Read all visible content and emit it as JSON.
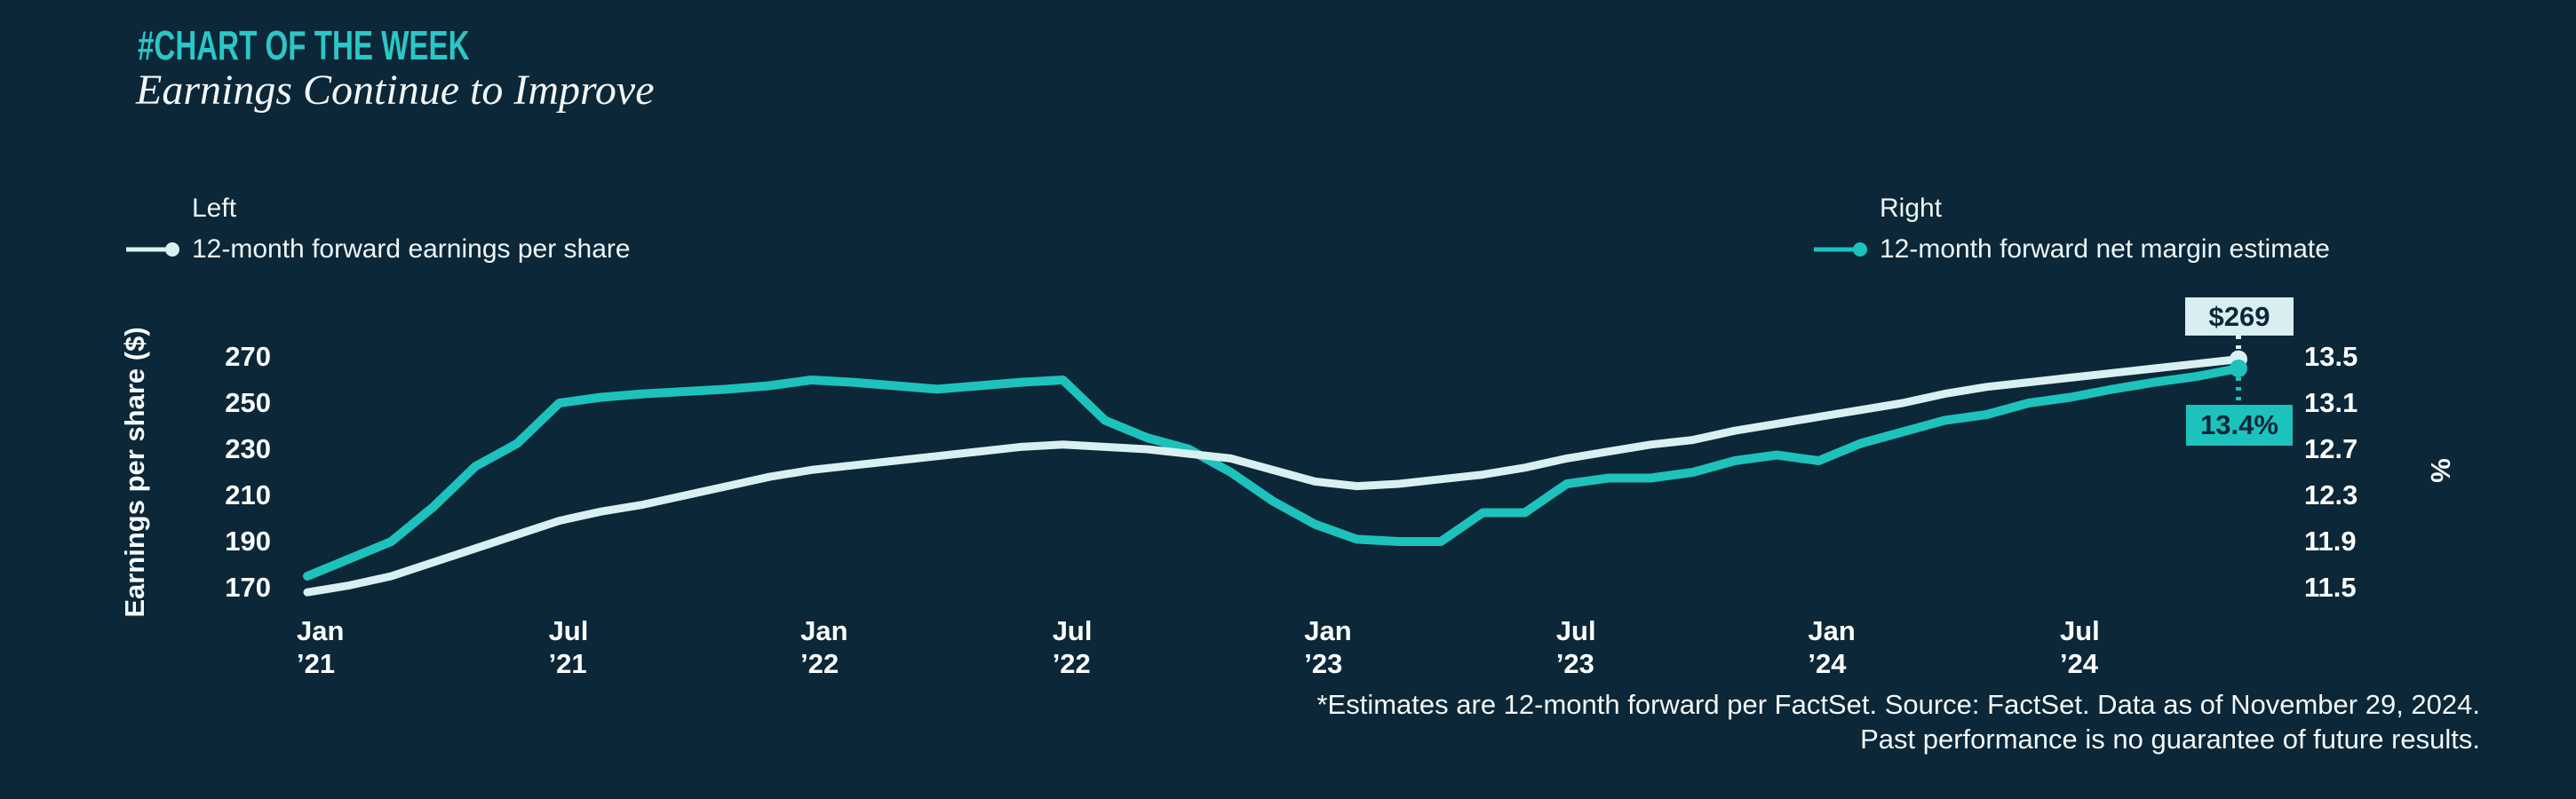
{
  "header": {
    "kicker": "#CHART OF THE WEEK",
    "title": "Earnings Continue to Improve"
  },
  "legend": {
    "left": {
      "axis_label": "Left",
      "series_label": "12-month forward earnings per share"
    },
    "right": {
      "axis_label": "Right",
      "series_label": "12-month forward net margin estimate"
    }
  },
  "colors": {
    "background": "#0c2737",
    "kicker_teal": "#2cc6c6",
    "eps_line": "#d8f0f1",
    "margin_line": "#1dc2bc",
    "text": "#f5fafa",
    "callout_eps_bg": "#d8eef0",
    "callout_margin_bg": "#1dc2bc",
    "callout_text": "#0c2737"
  },
  "chart_data": {
    "type": "line",
    "title": "Earnings Continue to Improve",
    "grid": false,
    "legend_position": "top",
    "x": [
      "2021-01",
      "2021-02",
      "2021-03",
      "2021-04",
      "2021-05",
      "2021-06",
      "2021-07",
      "2021-08",
      "2021-09",
      "2021-10",
      "2021-11",
      "2021-12",
      "2022-01",
      "2022-02",
      "2022-03",
      "2022-04",
      "2022-05",
      "2022-06",
      "2022-07",
      "2022-08",
      "2022-09",
      "2022-10",
      "2022-11",
      "2022-12",
      "2023-01",
      "2023-02",
      "2023-03",
      "2023-04",
      "2023-05",
      "2023-06",
      "2023-07",
      "2023-08",
      "2023-09",
      "2023-10",
      "2023-11",
      "2023-12",
      "2024-01",
      "2024-02",
      "2024-03",
      "2024-04",
      "2024-05",
      "2024-06",
      "2024-07",
      "2024-08",
      "2024-09",
      "2024-10",
      "2024-11"
    ],
    "series": [
      {
        "name": "12-month forward earnings per share",
        "axis": "left",
        "unit": "$",
        "color": "#d8f0f1",
        "values": [
          168,
          171,
          175,
          181,
          187,
          193,
          199,
          203,
          206,
          210,
          214,
          218,
          221,
          223,
          225,
          227,
          229,
          231,
          232,
          231,
          230,
          228,
          226,
          221,
          216,
          214,
          215,
          217,
          219,
          222,
          226,
          229,
          232,
          234,
          238,
          241,
          244,
          247,
          250,
          254,
          257,
          259,
          261,
          263,
          265,
          267,
          269
        ]
      },
      {
        "name": "12-month forward net margin estimate",
        "axis": "right",
        "unit": "%",
        "color": "#1dc2bc",
        "values": [
          11.6,
          11.75,
          11.9,
          12.2,
          12.55,
          12.75,
          13.1,
          13.15,
          13.18,
          13.2,
          13.22,
          13.25,
          13.3,
          13.28,
          13.25,
          13.22,
          13.25,
          13.28,
          13.3,
          12.95,
          12.8,
          12.7,
          12.5,
          12.25,
          12.05,
          11.92,
          11.9,
          11.9,
          12.15,
          12.15,
          12.4,
          12.45,
          12.45,
          12.5,
          12.6,
          12.65,
          12.6,
          12.75,
          12.85,
          12.95,
          13.0,
          13.1,
          13.15,
          13.22,
          13.28,
          13.33,
          13.4
        ]
      }
    ],
    "left_axis": {
      "label": "Earnings per share ($)",
      "ticks": [
        270,
        250,
        230,
        210,
        190,
        170
      ],
      "range": [
        166,
        272
      ]
    },
    "right_axis": {
      "label": "%",
      "ticks": [
        13.5,
        13.1,
        12.7,
        12.3,
        11.9,
        11.5
      ],
      "range": [
        11.42,
        13.54
      ]
    },
    "x_ticks": [
      {
        "index": 0,
        "line1": "Jan",
        "line2": "’21"
      },
      {
        "index": 6,
        "line1": "Jul",
        "line2": "’21"
      },
      {
        "index": 12,
        "line1": "Jan",
        "line2": "’22"
      },
      {
        "index": 18,
        "line1": "Jul",
        "line2": "’22"
      },
      {
        "index": 24,
        "line1": "Jan",
        "line2": "’23"
      },
      {
        "index": 30,
        "line1": "Jul",
        "line2": "’23"
      },
      {
        "index": 36,
        "line1": "Jan",
        "line2": "’24"
      },
      {
        "index": 42,
        "line1": "Jul",
        "line2": "’24"
      }
    ],
    "annotations": [
      {
        "label": "$269",
        "series": "12-month forward earnings per share",
        "value": 269,
        "position": "above-end"
      },
      {
        "label": "13.4%",
        "series": "12-month forward net margin estimate",
        "value": 13.4,
        "position": "below-end"
      }
    ]
  },
  "footer": {
    "line1": "*Estimates are 12-month forward per FactSet. Source: FactSet. Data as of November 29, 2024.",
    "line2": "Past performance is no guarantee of future results."
  }
}
